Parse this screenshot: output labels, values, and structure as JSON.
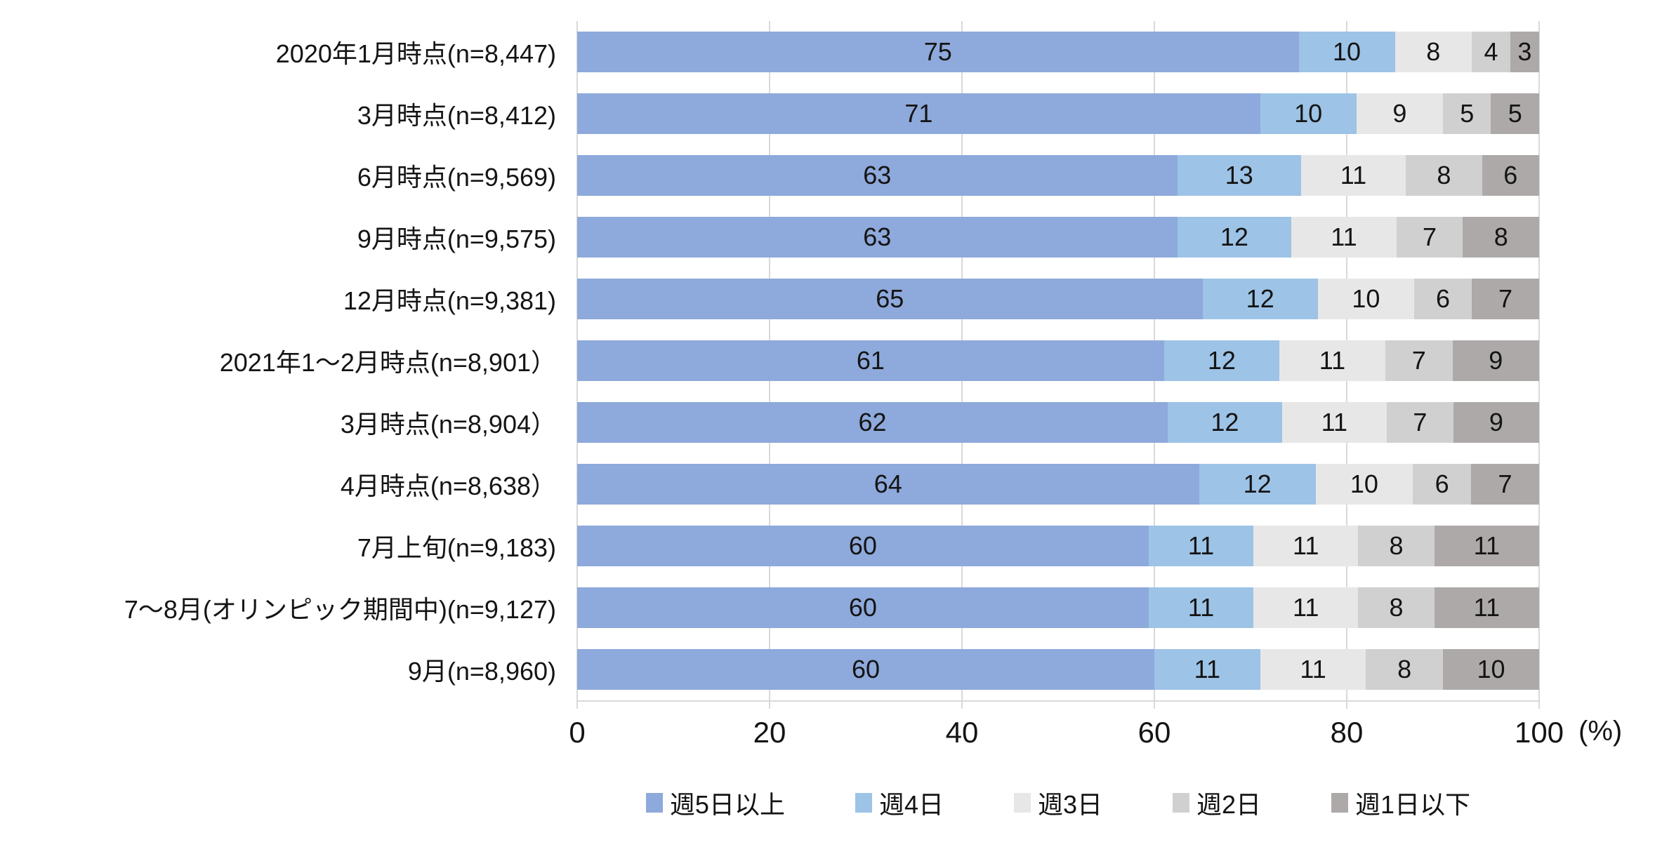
{
  "chart_data": {
    "type": "bar",
    "orientation": "horizontal",
    "stacked": true,
    "percent_stacked": true,
    "grid": true,
    "legend_position": "bottom",
    "categories": [
      "2020年1月時点(n=8,447)",
      "3月時点(n=8,412)",
      "6月時点(n=9,569)",
      "9月時点(n=9,575)",
      "12月時点(n=9,381)",
      "2021年1〜2月時点(n=8,901）",
      "3月時点(n=8,904）",
      "4月時点(n=8,638）",
      "7月上旬(n=9,183)",
      "7〜8月(オリンピック期間中)(n=9,127)",
      "9月(n=8,960)"
    ],
    "series": [
      {
        "name": "週5日以上",
        "color": "#8EA9DB",
        "values": [
          75,
          71,
          63,
          63,
          65,
          61,
          62,
          64,
          60,
          60,
          60
        ]
      },
      {
        "name": "週4日",
        "color": "#9DC3E6",
        "values": [
          10,
          10,
          13,
          12,
          12,
          12,
          12,
          12,
          11,
          11,
          11
        ]
      },
      {
        "name": "週3日",
        "color": "#E8E7E7",
        "values": [
          8,
          9,
          11,
          11,
          10,
          11,
          11,
          10,
          11,
          11,
          11
        ]
      },
      {
        "name": "週2日",
        "color": "#D1D0D0",
        "values": [
          4,
          5,
          8,
          7,
          6,
          7,
          7,
          6,
          8,
          8,
          8
        ]
      },
      {
        "name": "週1日以下",
        "color": "#ADA9A9",
        "values": [
          3,
          5,
          6,
          8,
          7,
          9,
          9,
          7,
          11,
          11,
          10
        ]
      }
    ],
    "x_axis": {
      "ticks": [
        0,
        20,
        40,
        60,
        80,
        100
      ],
      "range": [
        0,
        100
      ],
      "unit": "(%)"
    },
    "colors": {
      "gridline": "#D9D9D9",
      "text": "#141414",
      "background": "#FFFFFF"
    }
  }
}
